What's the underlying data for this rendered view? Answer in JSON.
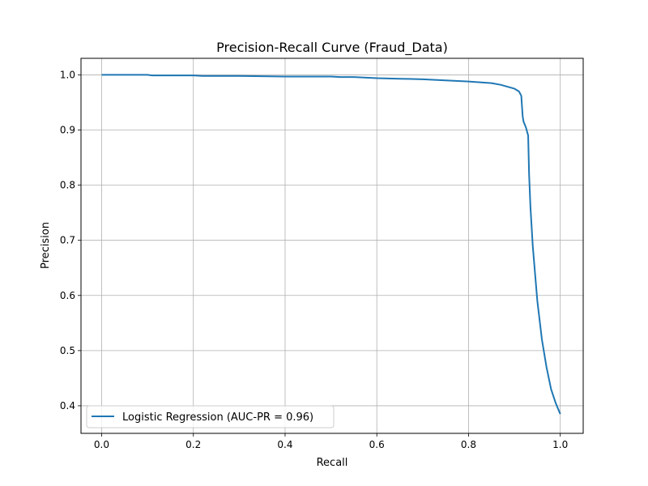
{
  "chart_data": {
    "type": "line",
    "title": "Precision-Recall Curve (Fraud_Data)",
    "xlabel": "Recall",
    "ylabel": "Precision",
    "xlim": [
      -0.045,
      1.05
    ],
    "ylim": [
      0.35,
      1.03
    ],
    "x_ticks": [
      0.0,
      0.2,
      0.4,
      0.6,
      0.8,
      1.0
    ],
    "y_ticks": [
      0.4,
      0.5,
      0.6,
      0.7,
      0.8,
      0.9,
      1.0
    ],
    "x_tick_labels": [
      "0.0",
      "0.2",
      "0.4",
      "0.6",
      "0.8",
      "1.0"
    ],
    "y_tick_labels": [
      "0.4",
      "0.5",
      "0.6",
      "0.7",
      "0.8",
      "0.9",
      "1.0"
    ],
    "grid": true,
    "legend_position": "lower-left",
    "series": [
      {
        "name": "Logistic Regression (AUC-PR = 0.96)",
        "color": "#1f77b4",
        "x": [
          0.0,
          0.1,
          0.11,
          0.2,
          0.22,
          0.3,
          0.4,
          0.5,
          0.52,
          0.55,
          0.6,
          0.65,
          0.7,
          0.75,
          0.8,
          0.85,
          0.87,
          0.9,
          0.91,
          0.915,
          0.918,
          0.92,
          0.925,
          0.93,
          0.932,
          0.935,
          0.94,
          0.945,
          0.95,
          0.96,
          0.97,
          0.98,
          0.99,
          1.0
        ],
        "y": [
          1.0,
          1.0,
          0.999,
          0.999,
          0.998,
          0.998,
          0.997,
          0.997,
          0.996,
          0.996,
          0.994,
          0.993,
          0.992,
          0.99,
          0.988,
          0.985,
          0.982,
          0.975,
          0.97,
          0.962,
          0.925,
          0.915,
          0.905,
          0.89,
          0.82,
          0.76,
          0.69,
          0.64,
          0.59,
          0.52,
          0.47,
          0.43,
          0.405,
          0.385
        ]
      }
    ]
  }
}
